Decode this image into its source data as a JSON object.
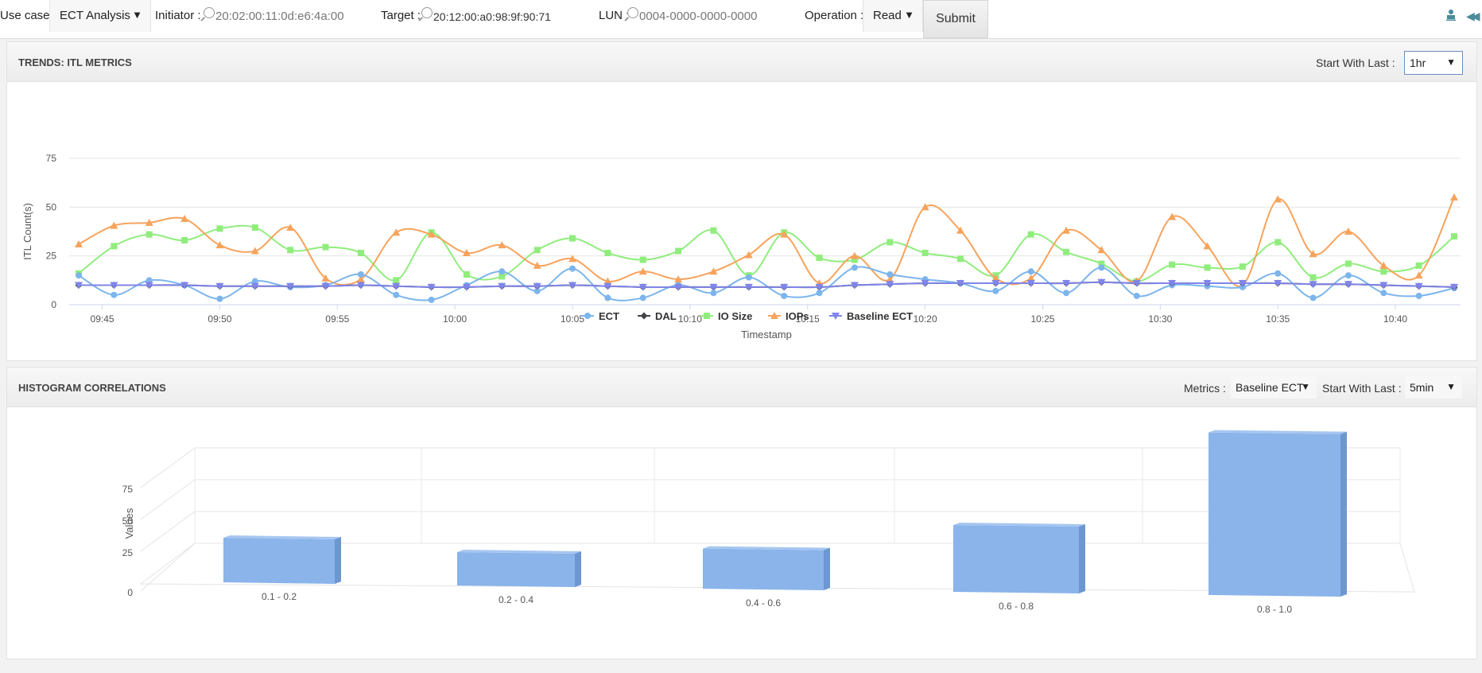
{
  "toolbar": {
    "use_case_label": "Use case :",
    "use_case_value": "ECT Analysis",
    "initiator_label": "Initiator :",
    "initiator_value": "20:02:00:11:0d:e6:4a:00",
    "target_label": "Target :",
    "target_value": "20:12:00:a0:98:9f:90:71",
    "lun_label": "LUN :",
    "lun_value": "0004-0000-0000-0000",
    "operation_label": "Operation :",
    "operation_value": "Read",
    "submit_label": "Submit",
    "icons": [
      "search-icon",
      "person-icon",
      "collapse-icon"
    ]
  },
  "trends": {
    "title": "TRENDS: ITL METRICS",
    "start_label": "Start With Last :",
    "start_value": "1hr"
  },
  "histogram": {
    "title": "HISTOGRAM CORRELATIONS",
    "metrics_label": "Metrics :",
    "metrics_value": "Baseline ECT",
    "start_label": "Start With Last :",
    "start_value": "5min"
  },
  "chart_data": [
    {
      "type": "line",
      "xlabel": "Timestamp",
      "ylabel": "ITL Count(s)",
      "ylim": [
        0,
        75
      ],
      "yticks": [
        0,
        25,
        50,
        75
      ],
      "x_start": "09:44",
      "x_step_minutes": 1.5,
      "xticks": [
        "09:45",
        "09:50",
        "09:55",
        "10:00",
        "10:05",
        "10:10",
        "10:15",
        "10:20",
        "10:25",
        "10:30",
        "10:35",
        "10:40"
      ],
      "grid": true,
      "legend": "bottom-center",
      "series": [
        {
          "name": "ECT",
          "color": "#7cb5ec",
          "marker": "circle",
          "values": [
            15,
            5,
            12.5,
            10,
            3,
            12,
            9,
            10,
            15.5,
            5,
            2.5,
            10,
            17,
            7,
            18.5,
            3.5,
            3.5,
            10,
            6,
            14,
            4.5,
            6,
            19,
            15.5,
            13,
            11,
            7,
            17,
            6,
            19,
            4.5,
            10,
            9.5,
            9,
            16,
            3.5,
            15,
            6,
            4.5,
            8.5
          ]
        },
        {
          "name": "DAL",
          "color": "#434348",
          "marker": "diamond",
          "values": [
            10,
            10,
            10,
            10,
            9.5,
            9.5,
            9.5,
            9.5,
            10,
            9.5,
            9,
            9,
            9.5,
            9.5,
            10,
            9.5,
            9,
            9,
            9,
            9,
            9,
            9,
            10,
            10.5,
            11,
            11,
            11,
            11,
            11,
            11.5,
            11,
            11,
            11,
            11,
            11,
            10.5,
            10.5,
            10,
            9.5,
            9
          ]
        },
        {
          "name": "IO Size",
          "color": "#90ed7d",
          "marker": "square",
          "values": [
            16,
            30,
            36,
            33,
            39,
            39.5,
            28,
            29.5,
            26.5,
            12.5,
            37,
            15.5,
            14.5,
            28,
            34,
            26.5,
            23,
            27.5,
            38,
            15,
            37,
            24,
            23,
            32,
            26.5,
            23.5,
            15,
            36,
            27,
            21,
            12,
            20.5,
            19,
            19.5,
            32,
            14,
            21,
            17,
            20,
            35
          ]
        },
        {
          "name": "IOPs",
          "color": "#f7a35c",
          "marker": "triangle",
          "values": [
            31,
            40.5,
            42,
            44,
            30.5,
            27.5,
            39.5,
            13.5,
            13,
            37,
            36,
            26.5,
            30.5,
            20,
            23.5,
            12,
            17,
            13,
            17,
            25.5,
            36,
            11,
            25,
            13,
            50,
            38,
            13.5,
            13.5,
            38,
            28,
            12,
            45,
            30,
            10,
            54,
            26,
            37.5,
            20,
            15,
            55
          ]
        },
        {
          "name": "Baseline ECT",
          "color": "#8085e9",
          "marker": "triangle-down",
          "values": [
            10,
            10,
            10,
            10,
            9.5,
            9.5,
            9.5,
            9.5,
            10,
            9.5,
            9,
            9,
            9.5,
            9.5,
            10,
            9.5,
            9,
            9,
            9,
            9,
            9,
            9,
            10,
            10.5,
            11,
            11,
            11,
            11,
            11,
            11.5,
            11,
            11,
            11,
            11,
            11,
            10.5,
            10.5,
            10,
            9.5,
            9
          ]
        }
      ]
    },
    {
      "type": "bar",
      "ylabel": "Values",
      "ylim": [
        0,
        75
      ],
      "yticks": [
        0,
        25,
        50,
        75
      ],
      "categories": [
        "0.1 - 0.2",
        "0.2 - 0.4",
        "0.4 - 0.6",
        "0.6 - 0.8",
        "0.8 - 1.0"
      ],
      "values": [
        20,
        15,
        18,
        30,
        73
      ],
      "color": "#8ab4ea",
      "grid": true
    }
  ]
}
